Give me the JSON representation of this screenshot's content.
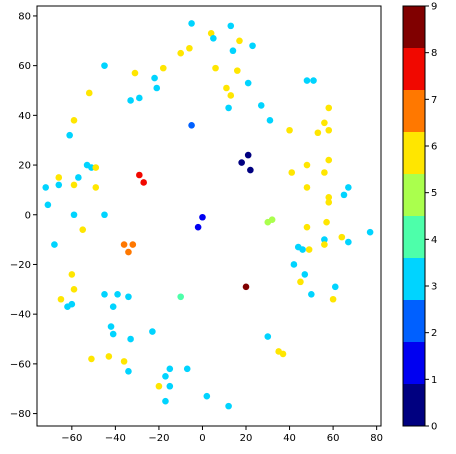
{
  "chart_data": {
    "type": "scatter",
    "title": "",
    "xlabel": "",
    "ylabel": "",
    "xlim": [
      -76,
      82
    ],
    "ylim": [
      -85,
      84
    ],
    "x_ticks": [
      -60,
      -40,
      -20,
      0,
      20,
      40,
      60,
      80
    ],
    "y_ticks": [
      -80,
      -60,
      -40,
      -20,
      0,
      20,
      40,
      60,
      80
    ],
    "grid": false,
    "colormap": "jet",
    "colorbar": {
      "min": 0,
      "max": 9,
      "ticks": [
        0,
        1,
        2,
        3,
        4,
        5,
        6,
        7,
        8,
        9
      ],
      "bins": [
        {
          "value": 0,
          "color": "#000080"
        },
        {
          "value": 1,
          "color": "#0000f1"
        },
        {
          "value": 2,
          "color": "#0060ff"
        },
        {
          "value": 3,
          "color": "#00d4ff"
        },
        {
          "value": 4,
          "color": "#4dffaa"
        },
        {
          "value": 5,
          "color": "#aaff4d"
        },
        {
          "value": 6,
          "color": "#ffe600"
        },
        {
          "value": 7,
          "color": "#ff7800"
        },
        {
          "value": 8,
          "color": "#f10800"
        },
        {
          "value": 9,
          "color": "#800000"
        }
      ]
    },
    "points": [
      {
        "x": -5,
        "y": 77,
        "c": 3
      },
      {
        "x": 13,
        "y": 76,
        "c": 3
      },
      {
        "x": 4,
        "y": 73,
        "c": 6
      },
      {
        "x": 5,
        "y": 71,
        "c": 3
      },
      {
        "x": 17,
        "y": 70,
        "c": 6
      },
      {
        "x": 23,
        "y": 68,
        "c": 3
      },
      {
        "x": -6,
        "y": 67,
        "c": 6
      },
      {
        "x": -10,
        "y": 65,
        "c": 6
      },
      {
        "x": 14,
        "y": 66,
        "c": 3
      },
      {
        "x": -45,
        "y": 60,
        "c": 3
      },
      {
        "x": -18,
        "y": 59,
        "c": 6
      },
      {
        "x": 6,
        "y": 59,
        "c": 6
      },
      {
        "x": 16,
        "y": 58,
        "c": 6
      },
      {
        "x": -31,
        "y": 57,
        "c": 6
      },
      {
        "x": -22,
        "y": 55,
        "c": 3
      },
      {
        "x": 48,
        "y": 54,
        "c": 3
      },
      {
        "x": 51,
        "y": 54,
        "c": 3
      },
      {
        "x": 21,
        "y": 53,
        "c": 3
      },
      {
        "x": -21,
        "y": 51,
        "c": 3
      },
      {
        "x": 11,
        "y": 51,
        "c": 6
      },
      {
        "x": -52,
        "y": 49,
        "c": 6
      },
      {
        "x": 13,
        "y": 48,
        "c": 6
      },
      {
        "x": -29,
        "y": 47,
        "c": 3
      },
      {
        "x": -33,
        "y": 46,
        "c": 3
      },
      {
        "x": 27,
        "y": 44,
        "c": 3
      },
      {
        "x": 12,
        "y": 43,
        "c": 3
      },
      {
        "x": 58,
        "y": 43,
        "c": 6
      },
      {
        "x": -59,
        "y": 38,
        "c": 6
      },
      {
        "x": 31,
        "y": 38,
        "c": 3
      },
      {
        "x": 56,
        "y": 37,
        "c": 6
      },
      {
        "x": -5,
        "y": 36,
        "c": 2
      },
      {
        "x": 40,
        "y": 34,
        "c": 6
      },
      {
        "x": 58,
        "y": 34,
        "c": 6
      },
      {
        "x": 53,
        "y": 33,
        "c": 6
      },
      {
        "x": -61,
        "y": 32,
        "c": 3
      },
      {
        "x": 21,
        "y": 24,
        "c": 0
      },
      {
        "x": 58,
        "y": 22,
        "c": 6
      },
      {
        "x": 18,
        "y": 21,
        "c": 0
      },
      {
        "x": -53,
        "y": 20,
        "c": 3
      },
      {
        "x": 48,
        "y": 20,
        "c": 6
      },
      {
        "x": -51,
        "y": 19,
        "c": 3
      },
      {
        "x": -49,
        "y": 19,
        "c": 6
      },
      {
        "x": 22,
        "y": 18,
        "c": 0
      },
      {
        "x": 41,
        "y": 17,
        "c": 6
      },
      {
        "x": 56,
        "y": 17,
        "c": 6
      },
      {
        "x": -29,
        "y": 16,
        "c": 8
      },
      {
        "x": -57,
        "y": 15,
        "c": 3
      },
      {
        "x": -66,
        "y": 15,
        "c": 6
      },
      {
        "x": -27,
        "y": 13,
        "c": 8
      },
      {
        "x": -66,
        "y": 12,
        "c": 3
      },
      {
        "x": -59,
        "y": 12,
        "c": 6
      },
      {
        "x": -72,
        "y": 11,
        "c": 3
      },
      {
        "x": 48,
        "y": 11,
        "c": 6
      },
      {
        "x": 67,
        "y": 11,
        "c": 3
      },
      {
        "x": -49,
        "y": 11,
        "c": 6
      },
      {
        "x": 65,
        "y": 8,
        "c": 3
      },
      {
        "x": 58,
        "y": 7,
        "c": 6
      },
      {
        "x": 58,
        "y": 5,
        "c": 6
      },
      {
        "x": -71,
        "y": 4,
        "c": 3
      },
      {
        "x": -59,
        "y": 0,
        "c": 3
      },
      {
        "x": -45,
        "y": 0,
        "c": 3
      },
      {
        "x": 0,
        "y": -1,
        "c": 1
      },
      {
        "x": 32,
        "y": -2,
        "c": 5
      },
      {
        "x": 30,
        "y": -3,
        "c": 5
      },
      {
        "x": 57,
        "y": -3,
        "c": 6
      },
      {
        "x": -2,
        "y": -5,
        "c": 1
      },
      {
        "x": 48,
        "y": -5,
        "c": 6
      },
      {
        "x": -55,
        "y": -6,
        "c": 6
      },
      {
        "x": 77,
        "y": -7,
        "c": 3
      },
      {
        "x": 64,
        "y": -9,
        "c": 6
      },
      {
        "x": 56,
        "y": -10,
        "c": 3
      },
      {
        "x": 67,
        "y": -11,
        "c": 3
      },
      {
        "x": -68,
        "y": -12,
        "c": 3
      },
      {
        "x": -36,
        "y": -12,
        "c": 7
      },
      {
        "x": -32,
        "y": -12,
        "c": 7
      },
      {
        "x": 56,
        "y": -12,
        "c": 6
      },
      {
        "x": 44,
        "y": -13,
        "c": 3
      },
      {
        "x": 46,
        "y": -14,
        "c": 3
      },
      {
        "x": 49,
        "y": -14,
        "c": 6
      },
      {
        "x": -34,
        "y": -15,
        "c": 7
      },
      {
        "x": 42,
        "y": -20,
        "c": 3
      },
      {
        "x": 47,
        "y": -24,
        "c": 3
      },
      {
        "x": -60,
        "y": -24,
        "c": 6
      },
      {
        "x": 45,
        "y": -27,
        "c": 6
      },
      {
        "x": 20,
        "y": -29,
        "c": 9
      },
      {
        "x": 61,
        "y": -29,
        "c": 3
      },
      {
        "x": -59,
        "y": -30,
        "c": 6
      },
      {
        "x": 50,
        "y": -32,
        "c": 3
      },
      {
        "x": -45,
        "y": -32,
        "c": 3
      },
      {
        "x": -39,
        "y": -32,
        "c": 3
      },
      {
        "x": -34,
        "y": -33,
        "c": 3
      },
      {
        "x": -10,
        "y": -33,
        "c": 4
      },
      {
        "x": -65,
        "y": -34,
        "c": 6
      },
      {
        "x": 60,
        "y": -34,
        "c": 6
      },
      {
        "x": -60,
        "y": -36,
        "c": 3
      },
      {
        "x": -62,
        "y": -37,
        "c": 3
      },
      {
        "x": -41,
        "y": -37,
        "c": 3
      },
      {
        "x": -42,
        "y": -45,
        "c": 3
      },
      {
        "x": -41,
        "y": -48,
        "c": 3
      },
      {
        "x": -23,
        "y": -47,
        "c": 3
      },
      {
        "x": 30,
        "y": -49,
        "c": 3
      },
      {
        "x": -33,
        "y": -50,
        "c": 3
      },
      {
        "x": 35,
        "y": -55,
        "c": 6
      },
      {
        "x": 37,
        "y": -56,
        "c": 6
      },
      {
        "x": -43,
        "y": -57,
        "c": 6
      },
      {
        "x": -51,
        "y": -58,
        "c": 6
      },
      {
        "x": -36,
        "y": -59,
        "c": 6
      },
      {
        "x": -15,
        "y": -62,
        "c": 3
      },
      {
        "x": -34,
        "y": -63,
        "c": 3
      },
      {
        "x": -17,
        "y": -65,
        "c": 3
      },
      {
        "x": -7,
        "y": -62,
        "c": 3
      },
      {
        "x": -20,
        "y": -69,
        "c": 6
      },
      {
        "x": -15,
        "y": -69,
        "c": 3
      },
      {
        "x": 2,
        "y": -73,
        "c": 3
      },
      {
        "x": -17,
        "y": -75,
        "c": 3
      },
      {
        "x": 12,
        "y": -77,
        "c": 3
      }
    ]
  }
}
